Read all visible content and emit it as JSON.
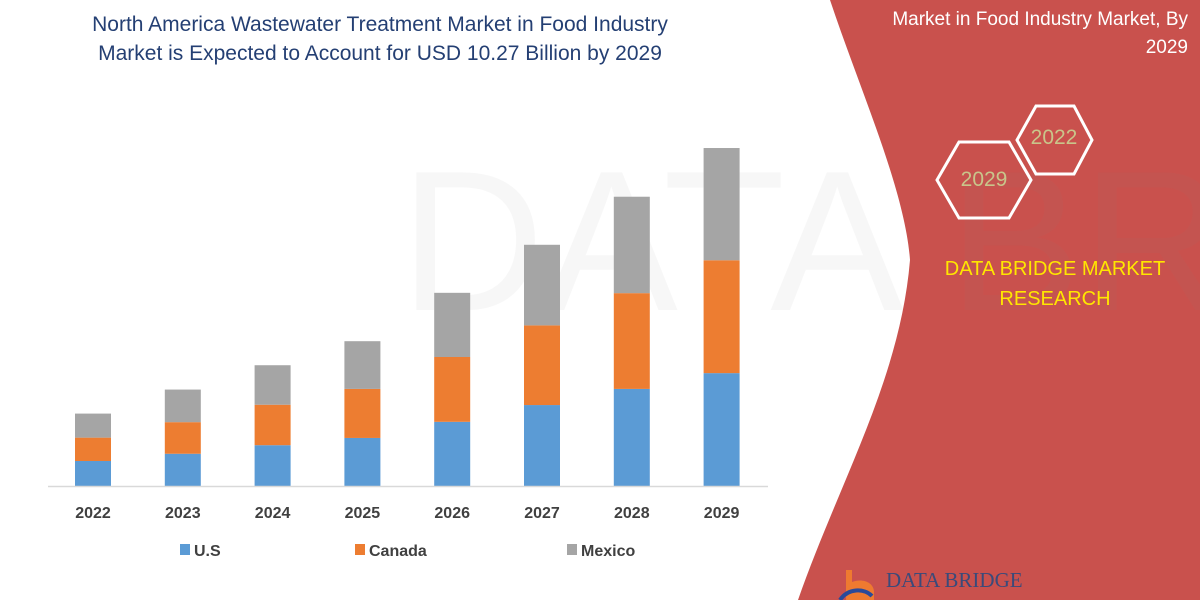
{
  "header": {
    "title_line1": "North America Wastewater Treatment Market in Food Industry",
    "title_line2": "Market is Expected to Account for USD 10.27 Billion by 2029"
  },
  "side_panel": {
    "title_line1": "Market in Food Industry Market, By",
    "title_line2": "2029",
    "hex_start": "2022",
    "hex_end": "2029",
    "brand_line1": "DATA BRIDGE MARKET",
    "brand_line2": "RESEARCH",
    "logo_text": "DATA BRIDGE",
    "panel_color": "#c9514d",
    "brand_color": "#ffe600"
  },
  "chart_data": {
    "type": "bar",
    "stacked": true,
    "title": "",
    "xlabel": "",
    "ylabel": "",
    "ylim": [
      0,
      11
    ],
    "grid": false,
    "legend_position": "bottom",
    "categories": [
      "2022",
      "2023",
      "2024",
      "2025",
      "2026",
      "2027",
      "2028",
      "2029"
    ],
    "series": [
      {
        "name": "U.S",
        "color": "#5b9bd5",
        "values": [
          0.76,
          0.98,
          1.24,
          1.46,
          1.95,
          2.46,
          2.95,
          3.43
        ]
      },
      {
        "name": "Canada",
        "color": "#ed7d31",
        "values": [
          0.71,
          0.96,
          1.23,
          1.49,
          1.97,
          2.42,
          2.91,
          3.43
        ]
      },
      {
        "name": "Mexico",
        "color": "#a5a5a5",
        "values": [
          0.73,
          0.99,
          1.2,
          1.45,
          1.95,
          2.45,
          2.93,
          3.41
        ]
      }
    ]
  }
}
